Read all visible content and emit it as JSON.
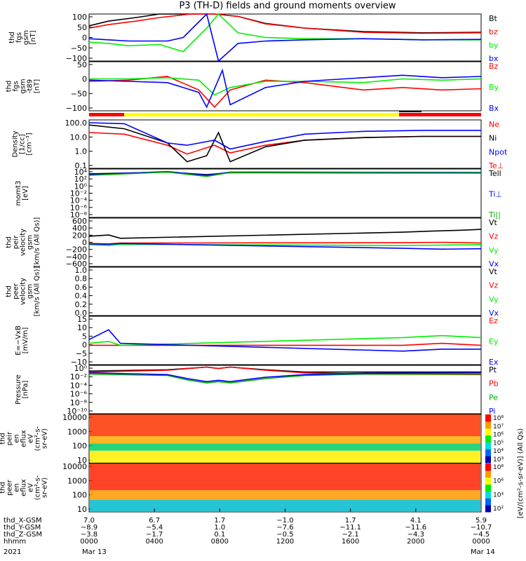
{
  "title": "P3 (TH-D) fields and ground moments overview",
  "colors": {
    "black": "#000000",
    "red": "#ff0000",
    "green": "#00ee00",
    "blue": "#0000ff",
    "yellow": "#ffff00",
    "dark_green": "#00aa00",
    "dark_red": "#cc0000"
  },
  "chart_data": [
    {
      "type": "line",
      "ylabel": "thd\nfgs\ngsm\n[nT]",
      "yticks": [
        "100",
        "50",
        "0",
        "−50",
        "−100"
      ],
      "ylim": [
        -100,
        100
      ],
      "series": [
        {
          "name": "Bt",
          "color": "#000000",
          "x": [
            0,
            0.05,
            0.12,
            0.18,
            0.2,
            0.26,
            0.32,
            0.38,
            0.45,
            0.55,
            0.7,
            0.85,
            1
          ],
          "y": [
            50,
            70,
            85,
            100,
            100,
            100,
            100,
            90,
            60,
            40,
            25,
            20,
            22
          ]
        },
        {
          "name": "bz",
          "color": "#ff0000",
          "x": [
            0,
            0.05,
            0.12,
            0.18,
            0.26,
            0.32,
            0.38,
            0.45,
            0.55,
            0.7,
            0.85,
            1
          ],
          "y": [
            40,
            55,
            70,
            85,
            100,
            100,
            90,
            58,
            40,
            22,
            18,
            20
          ]
        },
        {
          "name": "by",
          "color": "#00ee00",
          "x": [
            0,
            0.05,
            0.1,
            0.18,
            0.24,
            0.3,
            0.33,
            0.38,
            0.45,
            0.55,
            0.7,
            0.85,
            1
          ],
          "y": [
            -20,
            -25,
            -35,
            -30,
            -60,
            40,
            100,
            20,
            0,
            -5,
            -5,
            -10,
            -10
          ]
        },
        {
          "name": "bx",
          "color": "#0000ff",
          "x": [
            0,
            0.05,
            0.1,
            0.2,
            0.24,
            0.3,
            0.33,
            0.38,
            0.45,
            0.55,
            0.7,
            0.85,
            1
          ],
          "y": [
            -5,
            -10,
            -15,
            -15,
            0,
            100,
            -100,
            -25,
            -15,
            -10,
            -5,
            -10,
            -8
          ]
        }
      ],
      "legend": [
        "Bt",
        "bz",
        "by",
        "bx"
      ]
    },
    {
      "type": "line",
      "ylabel": "thd\nfgs\ngsm\n-t89\n[nT]",
      "yticks": [
        "50",
        "0",
        "−50",
        "−100"
      ],
      "ylim": [
        -125,
        75
      ],
      "series": [
        {
          "name": "Bz",
          "color": "#ff0000",
          "x": [
            0,
            0.1,
            0.2,
            0.28,
            0.32,
            0.36,
            0.45,
            0.55,
            0.7,
            0.8,
            0.9,
            1
          ],
          "y": [
            -5,
            0,
            15,
            -40,
            -110,
            -40,
            0,
            -10,
            -40,
            -30,
            -40,
            -35
          ]
        },
        {
          "name": "By",
          "color": "#00ee00",
          "x": [
            0,
            0.1,
            0.2,
            0.28,
            0.32,
            0.36,
            0.45,
            0.55,
            0.7,
            0.8,
            0.9,
            1
          ],
          "y": [
            5,
            5,
            10,
            0,
            -60,
            -30,
            -5,
            -5,
            -10,
            5,
            0,
            5
          ]
        },
        {
          "name": "Bx",
          "color": "#0000ff",
          "x": [
            0,
            0.1,
            0.2,
            0.28,
            0.3,
            0.34,
            0.36,
            0.45,
            0.55,
            0.7,
            0.8,
            0.9,
            1
          ],
          "y": [
            0,
            -5,
            -10,
            -50,
            -110,
            40,
            -100,
            -30,
            -5,
            10,
            20,
            10,
            15
          ]
        }
      ],
      "legend": [
        "Bz",
        "By",
        "Bx"
      ]
    },
    {
      "type": "line",
      "ylabel": "Density\n[1/cc]\n[cm⁻³]",
      "yticks": [
        "100.0",
        "10.0",
        "1.0",
        "0.1"
      ],
      "ylog": true,
      "ylim": [
        0.03,
        200
      ],
      "series": [
        {
          "name": "Ne",
          "color": "#ff0000",
          "x": [
            0,
            0.09,
            0.2,
            0.25,
            0.32,
            0.36,
            0.45,
            0.55,
            0.7,
            0.85,
            1
          ],
          "y": [
            20,
            15,
            2,
            0.4,
            2,
            0.5,
            2,
            5,
            8,
            10,
            10
          ]
        },
        {
          "name": "Ni",
          "color": "#000000",
          "x": [
            0,
            0.09,
            0.2,
            0.25,
            0.3,
            0.33,
            0.36,
            0.45,
            0.55,
            0.7,
            0.85,
            1
          ],
          "y": [
            80,
            40,
            3,
            0.1,
            0.3,
            20,
            0.1,
            1.5,
            5,
            8,
            10,
            10
          ]
        },
        {
          "name": "Npot",
          "color": "#0000ff",
          "x": [
            0,
            0.09,
            0.2,
            0.25,
            0.32,
            0.36,
            0.45,
            0.55,
            0.7,
            0.85,
            1
          ],
          "y": [
            120,
            100,
            3,
            2,
            5,
            1,
            4,
            15,
            25,
            30,
            30
          ]
        },
        {
          "name": "Te⊥",
          "color": "#ff0000",
          "x": [],
          "y": []
        }
      ],
      "legend": [
        "Ne",
        "Ni",
        "Npot",
        "Te⊥"
      ]
    },
    {
      "type": "line",
      "ylabel": "momt3\n[eV]",
      "yticks": [
        "10⁴",
        "10²",
        "10⁰",
        "10⁻²",
        "10⁻⁴",
        "10⁻⁶",
        "10⁻⁸"
      ],
      "ylog": true,
      "ylim": [
        1e-09,
        10000.0
      ],
      "series": [
        {
          "name": "Tell",
          "color": "#000000",
          "x": [
            0,
            0.2,
            0.3,
            0.36,
            1
          ],
          "y": [
            500,
            1500,
            300,
            1000,
            800
          ]
        },
        {
          "name": "Ti⊥",
          "color": "#0000ff",
          "x": [
            0,
            0.2,
            0.3,
            0.36,
            1
          ],
          "y": [
            300,
            2000,
            200,
            1500,
            1200
          ]
        },
        {
          "name": "Ti||",
          "color": "#00aa00",
          "x": [
            0,
            0.2,
            0.3,
            0.36,
            1
          ],
          "y": [
            200,
            1500,
            100,
            1200,
            900
          ]
        }
      ],
      "legend": [
        "Tell",
        "Ti⊥",
        "Ti||"
      ]
    },
    {
      "type": "line",
      "ylabel": "thd\npeir\nvelocity\ngsm\n[km/s (All Qs)]",
      "yticks": [
        "600",
        "400",
        "200",
        "0",
        "−200",
        "−400",
        "−600"
      ],
      "ylim": [
        -600,
        600
      ],
      "series": [
        {
          "name": "Vt",
          "color": "#000000",
          "x": [
            0,
            0.05,
            0.08,
            0.8,
            0.88,
            0.95,
            1
          ],
          "y": [
            150,
            180,
            100,
            250,
            280,
            300,
            320
          ]
        },
        {
          "name": "Vz",
          "color": "#ff0000",
          "x": [
            0,
            0.05,
            0.08,
            0.8,
            0.9,
            1
          ],
          "y": [
            -30,
            -40,
            -20,
            -10,
            0,
            -20
          ]
        },
        {
          "name": "Vy",
          "color": "#00ee00",
          "x": [
            0,
            0.05,
            0.08,
            0.8,
            0.9,
            1
          ],
          "y": [
            -60,
            -80,
            -50,
            -80,
            -70,
            -60
          ]
        },
        {
          "name": "Vx",
          "color": "#0000ff",
          "x": [
            0,
            0.05,
            0.08,
            0.8,
            0.9,
            1
          ],
          "y": [
            -40,
            -50,
            -30,
            -150,
            -170,
            -160
          ]
        }
      ],
      "legend": [
        "Vt",
        "Vz",
        "Vy",
        "Vx"
      ]
    },
    {
      "type": "line",
      "ylabel": "thd\npeer\nvelocity\ngsm\n[km/s (All Qs)]",
      "yticks": [
        "1.0",
        "0.8",
        "0.6",
        "0.4",
        "0.2",
        "0.0"
      ],
      "ylim": [
        0,
        1
      ],
      "series": [],
      "legend": [
        "Vt",
        "Vz",
        "Vy",
        "Vx"
      ]
    },
    {
      "type": "line",
      "ylabel": "E=−VxB\n[mV/m]",
      "yticks": [
        "15",
        "10",
        "5",
        "0",
        "−5",
        "−10"
      ],
      "ylim": [
        -10,
        15
      ],
      "series": [
        {
          "name": "Ez",
          "color": "#ff0000",
          "x": [
            0,
            0.05,
            0.08,
            0.8,
            0.9,
            1
          ],
          "y": [
            0,
            0,
            0,
            0,
            1,
            0
          ]
        },
        {
          "name": "Ey",
          "color": "#00ee00",
          "x": [
            0,
            0.05,
            0.08,
            0.8,
            0.9,
            1
          ],
          "y": [
            1,
            2,
            0,
            4,
            5,
            4
          ]
        },
        {
          "name": "Ex",
          "color": "#0000ff",
          "x": [
            0,
            0.05,
            0.08,
            0.8,
            0.9,
            1
          ],
          "y": [
            3,
            8,
            1,
            -3,
            -2,
            -2
          ]
        }
      ],
      "legend": [
        "Ez",
        "Ey",
        "Ex"
      ]
    },
    {
      "type": "line",
      "ylabel": "Pressure\n[nPa]",
      "yticks": [
        "10⁰",
        "10⁻²",
        "10⁻⁴",
        "10⁻⁶",
        "10⁻⁸",
        "10⁻¹⁰"
      ],
      "ylog": true,
      "ylim": [
        1e-10,
        10
      ],
      "series": [
        {
          "name": "Pt",
          "color": "#000000",
          "x": [
            0,
            0.2,
            0.3,
            0.33,
            0.36,
            0.45,
            0.55,
            0.7,
            1
          ],
          "y": [
            0.5,
            1,
            4,
            2,
            4,
            1,
            0.3,
            0.3,
            0.3
          ]
        },
        {
          "name": "Pb",
          "color": "#ff0000",
          "x": [
            0,
            0.2,
            0.3,
            0.33,
            0.36,
            0.45,
            0.55,
            0.7,
            1
          ],
          "y": [
            0.3,
            0.8,
            4,
            2,
            4,
            0.8,
            0.2,
            0.1,
            0.08
          ]
        },
        {
          "name": "Pe",
          "color": "#00aa00",
          "x": [
            0,
            0.2,
            0.25,
            0.3,
            0.33,
            0.36,
            0.45,
            0.55,
            0.7,
            1
          ],
          "y": [
            0.1,
            0.05,
            0.005,
            0.001,
            0.002,
            0.001,
            0.01,
            0.05,
            0.1,
            0.1
          ]
        },
        {
          "name": "Pi",
          "color": "#0000ff",
          "x": [
            0,
            0.2,
            0.25,
            0.3,
            0.33,
            0.36,
            0.45,
            0.55,
            0.7,
            1
          ],
          "y": [
            0.2,
            0.08,
            0.01,
            0.002,
            0.004,
            0.002,
            0.02,
            0.08,
            0.15,
            0.2
          ]
        }
      ],
      "legend": [
        "Pt",
        "Pb",
        "Pe",
        "Pi"
      ]
    },
    {
      "type": "heatmap",
      "ylabel": "thd\npeir\nen\neflux\neV\n(cm²-s-\nsr-eV)",
      "yticks": [
        "10000",
        "1000",
        "100",
        "10"
      ],
      "colorbar_ticks": [
        "10⁸",
        "10⁷",
        "10⁶",
        "10⁵",
        "10⁴",
        "10³"
      ],
      "colorbar_label": "[eV/(cm²-s-sr-eV)] (All Qs)"
    },
    {
      "type": "heatmap",
      "ylabel": "thd\npeer\nen\neflux\neV\n(cm²-s-\nsr-eV)",
      "yticks": [
        "10000",
        "1000",
        "100",
        "10"
      ],
      "colorbar_ticks": [
        "10⁸",
        "10⁶",
        "10⁴",
        "10²"
      ]
    }
  ],
  "x_axis": {
    "rows": [
      {
        "label": "thd_X-GSM",
        "values": [
          "7.0",
          "6.7",
          "1.7",
          "−1.0",
          "1.7",
          "4.1",
          "5.9"
        ]
      },
      {
        "label": "thd_Y-GSM",
        "values": [
          "−8.9",
          "−5.4",
          "1.0",
          "−7.6",
          "−11.1",
          "−11.6",
          "−10.7"
        ]
      },
      {
        "label": "thd_Z-GSM",
        "values": [
          "−3.8",
          "−1.7",
          "0.1",
          "−0.5",
          "−2.1",
          "−4.3",
          "−4.5"
        ]
      },
      {
        "label": "hhmm",
        "values": [
          "0000",
          "0400",
          "0800",
          "1200",
          "1600",
          "2000",
          "0000"
        ]
      }
    ],
    "year": "2021",
    "dates": [
      "Mar 13",
      "Mar 14"
    ]
  },
  "status_bar": [
    "red",
    "yellow",
    "black",
    "red"
  ]
}
